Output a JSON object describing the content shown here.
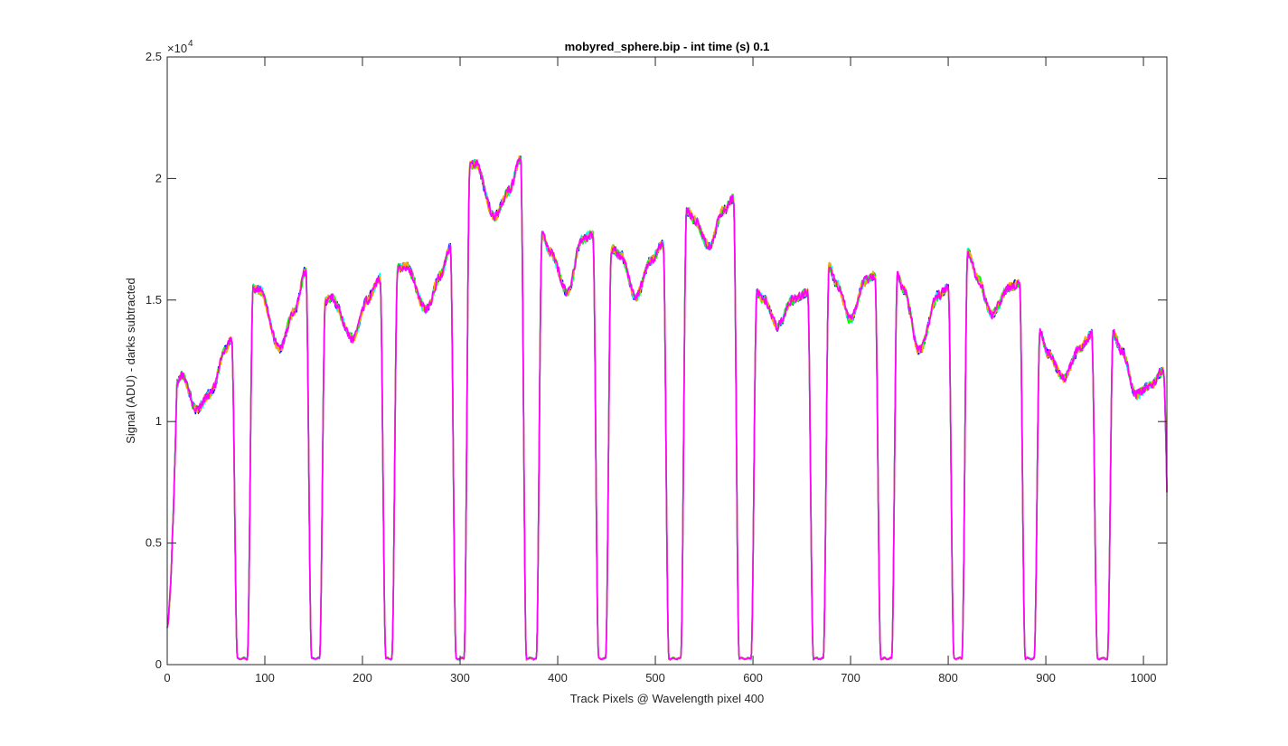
{
  "chart_data": {
    "type": "line",
    "title": "mobyred_sphere.bip - int time (s) 0.1",
    "xlabel": "Track Pixels @ Wavelength pixel 400",
    "ylabel": "Signal (ADU) - darks subtracted",
    "xlim": [
      0,
      1024
    ],
    "ylim": [
      0,
      25000
    ],
    "y_exponent_label": "×10",
    "y_exponent_power": "4",
    "x_ticks": [
      0,
      100,
      200,
      300,
      400,
      500,
      600,
      700,
      800,
      900,
      1000
    ],
    "x_tick_labels": [
      "0",
      "100",
      "200",
      "300",
      "400",
      "500",
      "600",
      "700",
      "800",
      "900",
      "1000"
    ],
    "y_ticks": [
      0,
      5000,
      10000,
      15000,
      20000,
      25000
    ],
    "y_tick_labels": [
      "0",
      "0.5",
      "1",
      "1.5",
      "2",
      "2.5"
    ],
    "grid": false,
    "legend": "none",
    "series_colors": [
      "#0000ff",
      "#00ffff",
      "#00ff00",
      "#ffa500",
      "#ff00ff"
    ],
    "baseline": 250,
    "noise": 250,
    "start": {
      "x": 0,
      "y": 1500
    },
    "end": {
      "x": 1024,
      "y": 7200
    },
    "segments": [
      {
        "x_start": 10,
        "x_end": 66,
        "profile": [
          [
            10,
            11600
          ],
          [
            15,
            11900
          ],
          [
            30,
            10500
          ],
          [
            45,
            11200
          ],
          [
            60,
            13000
          ],
          [
            66,
            13400
          ]
        ]
      },
      {
        "x_start": 88,
        "x_end": 142,
        "profile": [
          [
            88,
            15500
          ],
          [
            95,
            15400
          ],
          [
            115,
            13000
          ],
          [
            130,
            14500
          ],
          [
            142,
            16200
          ]
        ]
      },
      {
        "x_start": 162,
        "x_end": 218,
        "profile": [
          [
            162,
            15000
          ],
          [
            168,
            15100
          ],
          [
            190,
            13400
          ],
          [
            205,
            15000
          ],
          [
            218,
            15900
          ]
        ]
      },
      {
        "x_start": 236,
        "x_end": 290,
        "profile": [
          [
            236,
            16300
          ],
          [
            245,
            16400
          ],
          [
            265,
            14600
          ],
          [
            280,
            16000
          ],
          [
            290,
            17200
          ]
        ]
      },
      {
        "x_start": 310,
        "x_end": 362,
        "profile": [
          [
            310,
            20500
          ],
          [
            316,
            20600
          ],
          [
            335,
            18400
          ],
          [
            350,
            19500
          ],
          [
            362,
            20800
          ]
        ]
      },
      {
        "x_start": 384,
        "x_end": 436,
        "profile": [
          [
            384,
            17700
          ],
          [
            392,
            17000
          ],
          [
            410,
            15300
          ],
          [
            425,
            17500
          ],
          [
            436,
            17700
          ]
        ]
      },
      {
        "x_start": 455,
        "x_end": 508,
        "profile": [
          [
            455,
            17100
          ],
          [
            465,
            16800
          ],
          [
            480,
            15100
          ],
          [
            495,
            16600
          ],
          [
            508,
            17300
          ]
        ]
      },
      {
        "x_start": 532,
        "x_end": 580,
        "profile": [
          [
            532,
            18700
          ],
          [
            540,
            18300
          ],
          [
            555,
            17200
          ],
          [
            570,
            18700
          ],
          [
            580,
            19200
          ]
        ]
      },
      {
        "x_start": 604,
        "x_end": 656,
        "profile": [
          [
            604,
            15300
          ],
          [
            612,
            15000
          ],
          [
            625,
            13900
          ],
          [
            640,
            15000
          ],
          [
            656,
            15300
          ]
        ]
      },
      {
        "x_start": 678,
        "x_end": 725,
        "profile": [
          [
            678,
            16400
          ],
          [
            685,
            15700
          ],
          [
            700,
            14200
          ],
          [
            715,
            15800
          ],
          [
            725,
            16000
          ]
        ]
      },
      {
        "x_start": 748,
        "x_end": 800,
        "profile": [
          [
            748,
            16000
          ],
          [
            755,
            15400
          ],
          [
            770,
            12900
          ],
          [
            790,
            15200
          ],
          [
            800,
            15500
          ]
        ]
      },
      {
        "x_start": 820,
        "x_end": 873,
        "profile": [
          [
            820,
            17000
          ],
          [
            830,
            15900
          ],
          [
            845,
            14400
          ],
          [
            862,
            15500
          ],
          [
            873,
            15700
          ]
        ]
      },
      {
        "x_start": 894,
        "x_end": 947,
        "profile": [
          [
            894,
            13700
          ],
          [
            902,
            12800
          ],
          [
            918,
            11800
          ],
          [
            935,
            13000
          ],
          [
            947,
            13600
          ]
        ]
      },
      {
        "x_start": 969,
        "x_end": 1020,
        "profile": [
          [
            969,
            13600
          ],
          [
            978,
            12900
          ],
          [
            992,
            11100
          ],
          [
            1008,
            11500
          ],
          [
            1020,
            12100
          ]
        ]
      }
    ],
    "gaps": [
      {
        "x_start": 66,
        "x_end": 88
      },
      {
        "x_start": 142,
        "x_end": 162
      },
      {
        "x_start": 218,
        "x_end": 236
      },
      {
        "x_start": 290,
        "x_end": 310
      },
      {
        "x_start": 362,
        "x_end": 384
      },
      {
        "x_start": 436,
        "x_end": 455
      },
      {
        "x_start": 508,
        "x_end": 532
      },
      {
        "x_start": 580,
        "x_end": 604
      },
      {
        "x_start": 656,
        "x_end": 678
      },
      {
        "x_start": 725,
        "x_end": 748
      },
      {
        "x_start": 800,
        "x_end": 820
      },
      {
        "x_start": 873,
        "x_end": 894
      },
      {
        "x_start": 947,
        "x_end": 969
      }
    ]
  }
}
